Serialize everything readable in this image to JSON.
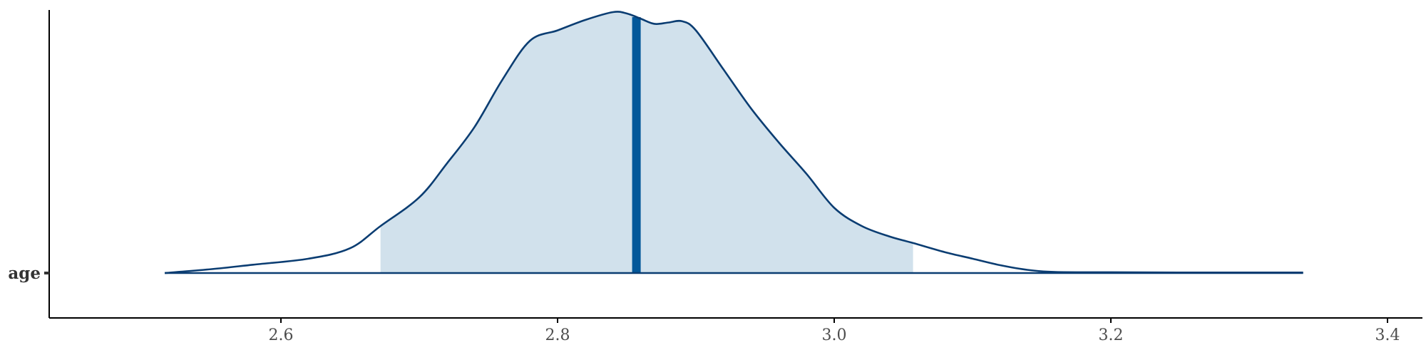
{
  "chart_data": {
    "type": "area",
    "title": "",
    "xlabel": "",
    "ylabel": "",
    "xlim": [
      2.43,
      3.43
    ],
    "x_ticks": [
      2.6,
      2.8,
      3.0,
      3.2,
      3.4
    ],
    "x_tick_labels": [
      "2.6",
      "2.8",
      "3.0",
      "3.2",
      "3.4"
    ],
    "y_categories": [
      "age"
    ],
    "grid": false,
    "series": [
      {
        "category": "age",
        "kind": "posterior-density",
        "x": [
          2.516,
          2.55,
          2.58,
          2.62,
          2.65,
          2.672,
          2.7,
          2.72,
          2.74,
          2.76,
          2.78,
          2.8,
          2.82,
          2.84,
          2.85,
          2.86,
          2.87,
          2.88,
          2.89,
          2.9,
          2.92,
          2.94,
          2.96,
          2.98,
          3.0,
          3.02,
          3.04,
          3.057,
          3.08,
          3.1,
          3.12,
          3.14,
          3.16,
          3.2,
          3.25,
          3.3,
          3.339
        ],
        "density": [
          0.0,
          0.015,
          0.032,
          0.055,
          0.095,
          0.18,
          0.29,
          0.42,
          0.56,
          0.74,
          0.89,
          0.93,
          0.97,
          1.0,
          0.995,
          0.975,
          0.955,
          0.96,
          0.965,
          0.93,
          0.78,
          0.63,
          0.5,
          0.38,
          0.25,
          0.18,
          0.14,
          0.115,
          0.08,
          0.055,
          0.03,
          0.012,
          0.004,
          0.003,
          0.002,
          0.002,
          0.002
        ]
      }
    ],
    "interval": {
      "level_note": "shaded credible interval",
      "low": 2.672,
      "high": 3.057
    },
    "point_estimate": 2.857,
    "colors": {
      "outline": "#0b3d72",
      "fill_interval": "#d1e1ec",
      "estimate_line": "#03589a",
      "axis": "#000000"
    }
  }
}
